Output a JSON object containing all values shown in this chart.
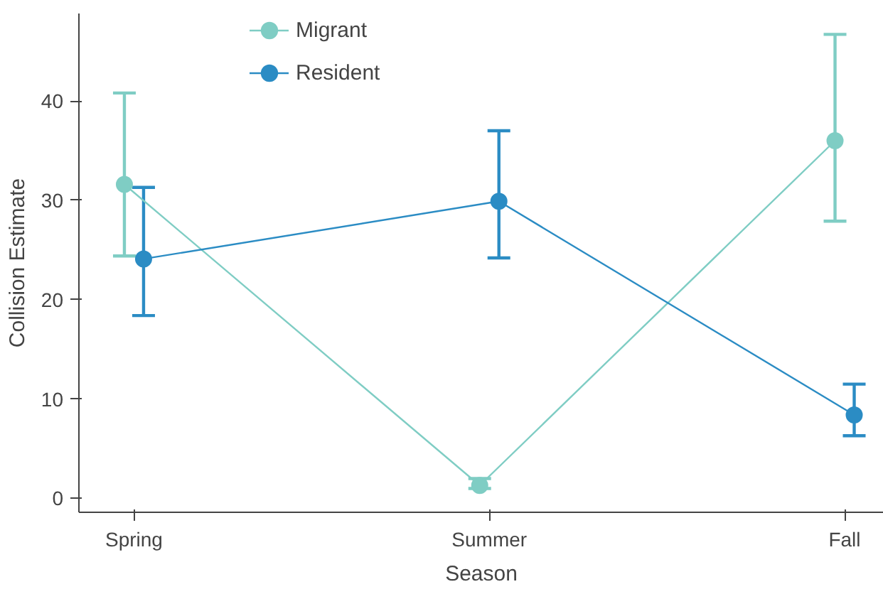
{
  "chart_data": {
    "type": "line",
    "xlabel": "Season",
    "ylabel": "Collision Estimate",
    "categories": [
      "Spring",
      "Summer",
      "Fall"
    ],
    "series": [
      {
        "name": "Migrant",
        "color": "#7fcdc4",
        "values": [
          31.6,
          1.3,
          36.0
        ],
        "errors": [
          [
            24.4,
            40.8
          ],
          [
            1.0,
            2.0
          ],
          [
            27.9,
            46.7
          ]
        ]
      },
      {
        "name": "Resident",
        "color": "#2b8cc4",
        "values": [
          24.1,
          29.9,
          8.4
        ],
        "errors": [
          [
            18.4,
            31.3
          ],
          [
            24.2,
            37.0
          ],
          [
            6.3,
            11.5
          ]
        ]
      }
    ],
    "ylim": [
      -1.4,
      48.8
    ],
    "yticks": [
      0,
      10,
      20,
      30,
      40
    ],
    "grid": false,
    "legend": "top left",
    "marker": "circle",
    "line_style": "solid"
  }
}
